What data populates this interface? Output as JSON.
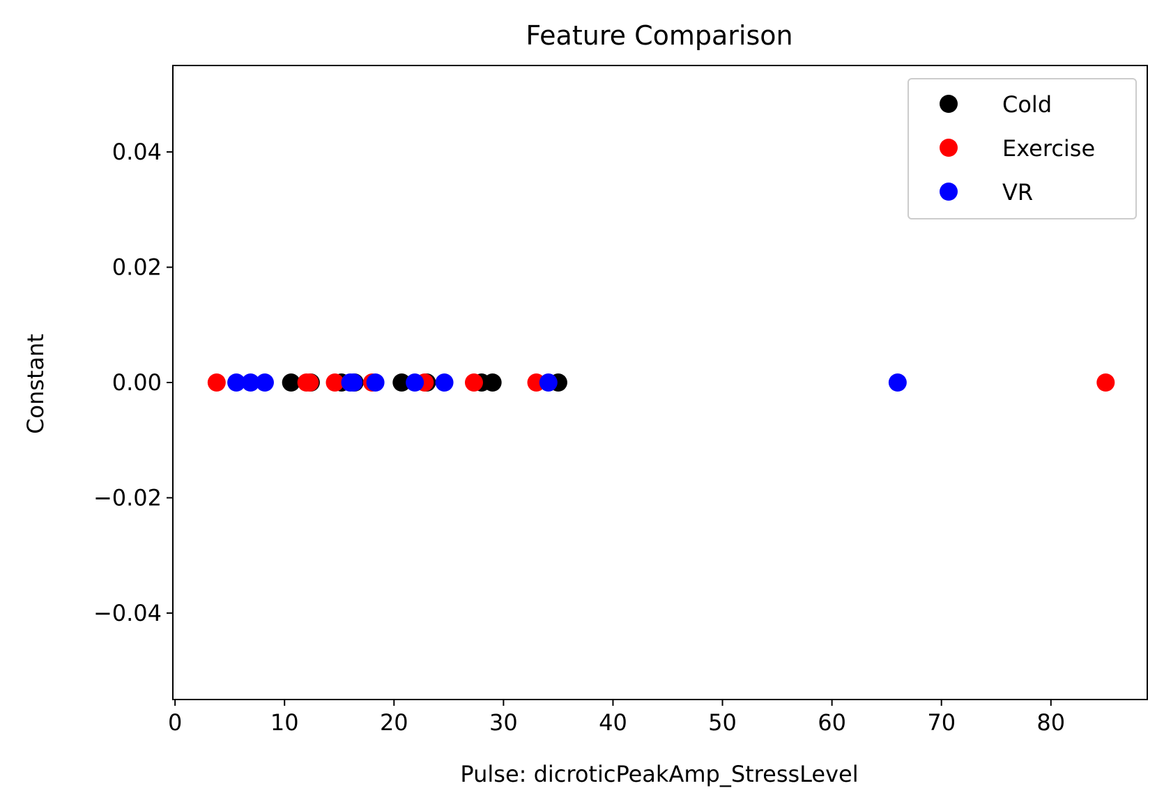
{
  "chart_data": {
    "type": "scatter",
    "title": "Feature Comparison",
    "xlabel": "Pulse: dicroticPeakAmp_StressLevel",
    "ylabel": "Constant",
    "xlim": [
      -0.2,
      88.8
    ],
    "ylim": [
      -0.055,
      0.055
    ],
    "x_ticks": [
      0,
      10,
      20,
      30,
      40,
      50,
      60,
      70,
      80
    ],
    "x_tick_labels": [
      "0",
      "10",
      "20",
      "30",
      "40",
      "50",
      "60",
      "70",
      "80"
    ],
    "y_ticks": [
      -0.04,
      -0.02,
      0.0,
      0.02,
      0.04
    ],
    "y_tick_labels": [
      "−0.04",
      "−0.02",
      "0.00",
      "0.02",
      "0.04"
    ],
    "grid": false,
    "legend_position": "top-right",
    "series": [
      {
        "name": "Cold",
        "color": "#000000",
        "x": [
          10.6,
          12.4,
          15.2,
          16.4,
          20.7,
          23.0,
          28.0,
          29.0,
          35.0
        ],
        "y": [
          0,
          0,
          0,
          0,
          0,
          0,
          0,
          0,
          0
        ]
      },
      {
        "name": "Exercise",
        "color": "#ff0000",
        "x": [
          3.8,
          12.0,
          12.3,
          14.6,
          18.0,
          22.8,
          27.3,
          33.0,
          85.0
        ],
        "y": [
          0,
          0,
          0,
          0,
          0,
          0,
          0,
          0,
          0
        ]
      },
      {
        "name": "VR",
        "color": "#0000ff",
        "x": [
          5.6,
          6.9,
          8.2,
          16.0,
          16.3,
          18.3,
          21.9,
          24.6,
          34.1,
          66.0
        ],
        "y": [
          0,
          0,
          0,
          0,
          0,
          0,
          0,
          0,
          0,
          0
        ]
      }
    ]
  }
}
